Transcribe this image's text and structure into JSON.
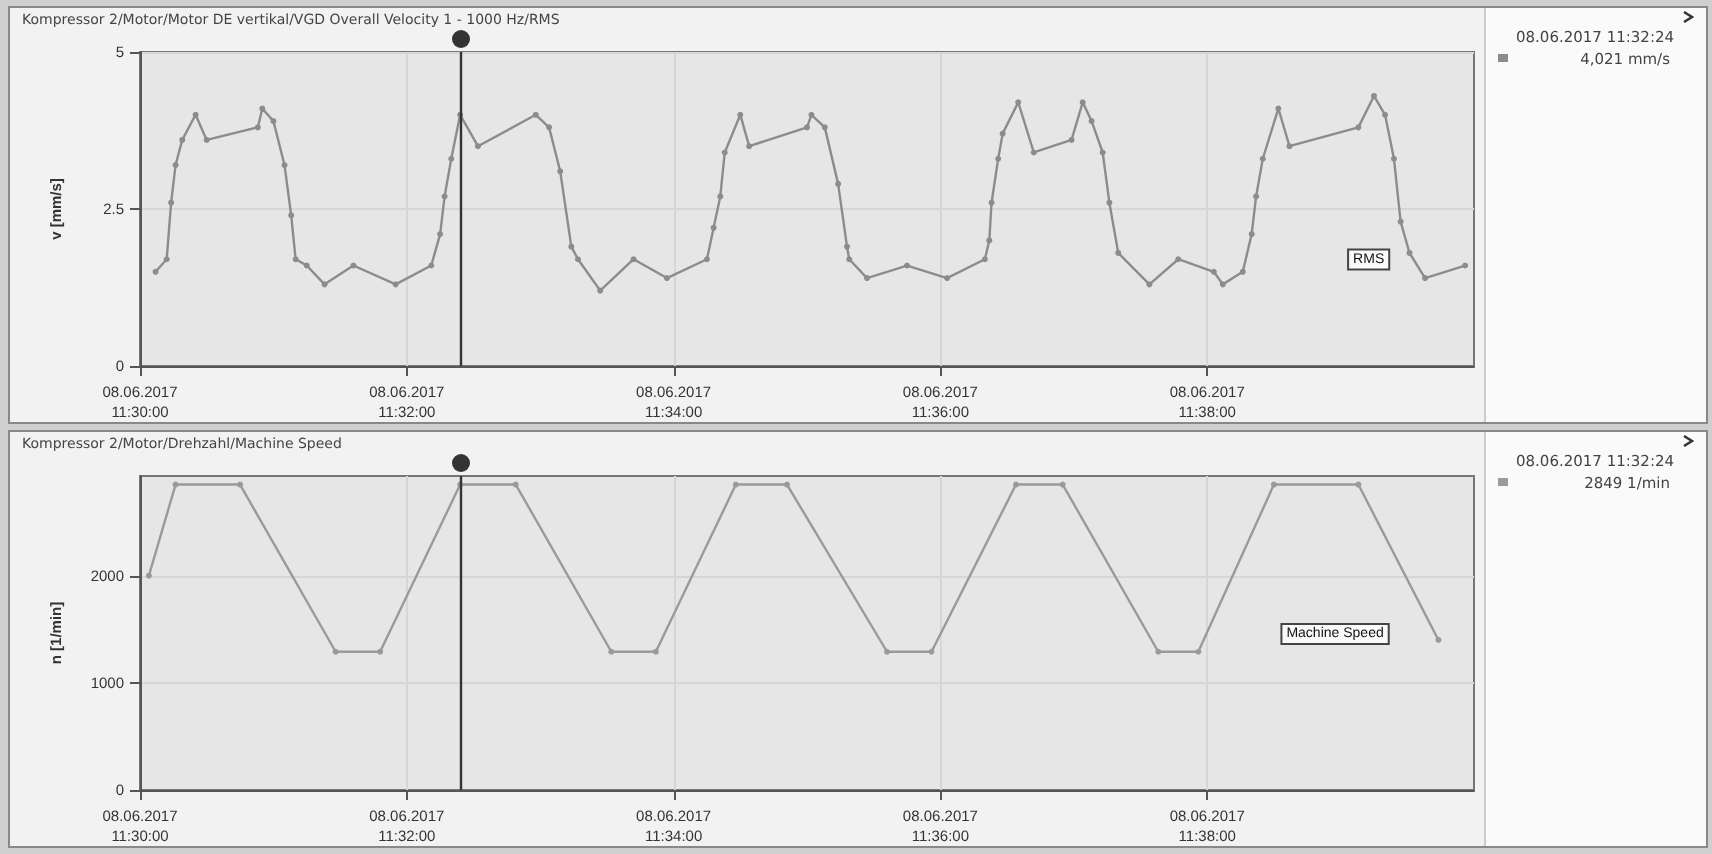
{
  "chart_data": [
    {
      "type": "line",
      "title": "Kompressor 2/Motor/Motor DE vertikal/VGD Overall Velocity 1 - 1000 Hz/RMS",
      "ylabel": "v [mm/s]",
      "xlim": [
        "2017-06-08T11:30:00",
        "2017-06-08T11:40:00"
      ],
      "xticks": [
        {
          "value": "2017-06-08T11:30:00",
          "label": "08.06.2017\n11:30:00"
        },
        {
          "value": "2017-06-08T11:32:00",
          "label": "08.06.2017\n11:32:00"
        },
        {
          "value": "2017-06-08T11:34:00",
          "label": "08.06.2017\n11:34:00"
        },
        {
          "value": "2017-06-08T11:36:00",
          "label": "08.06.2017\n11:36:00"
        },
        {
          "value": "2017-06-08T11:38:00",
          "label": "08.06.2017\n11:38:00"
        }
      ],
      "ylim": [
        0,
        5
      ],
      "yticks": [
        0,
        2.5,
        5
      ],
      "grid": true,
      "marker": "circle",
      "line_style": "solid",
      "ref_lines": [
        {
          "axis": "x",
          "value": "2017-06-08T11:32:24",
          "color": "#333333"
        }
      ],
      "annotations": [
        "08.06.2017 11:32:24",
        "4,021 mm/s"
      ],
      "series": [
        {
          "name": "RMS",
          "color": "#8c8c8c",
          "x": [
            "2017-06-08T11:30:07",
            "2017-06-08T11:30:12",
            "2017-06-08T11:30:14",
            "2017-06-08T11:30:16",
            "2017-06-08T11:30:19",
            "2017-06-08T11:30:25",
            "2017-06-08T11:30:30",
            "2017-06-08T11:30:53",
            "2017-06-08T11:30:55",
            "2017-06-08T11:31:00",
            "2017-06-08T11:31:05",
            "2017-06-08T11:31:08",
            "2017-06-08T11:31:10",
            "2017-06-08T11:31:15",
            "2017-06-08T11:31:23",
            "2017-06-08T11:31:36",
            "2017-06-08T11:31:55",
            "2017-06-08T11:32:11",
            "2017-06-08T11:32:15",
            "2017-06-08T11:32:17",
            "2017-06-08T11:32:20",
            "2017-06-08T11:32:24",
            "2017-06-08T11:32:32",
            "2017-06-08T11:32:58",
            "2017-06-08T11:33:04",
            "2017-06-08T11:33:09",
            "2017-06-08T11:33:14",
            "2017-06-08T11:33:17",
            "2017-06-08T11:33:27",
            "2017-06-08T11:33:42",
            "2017-06-08T11:33:57",
            "2017-06-08T11:34:15",
            "2017-06-08T11:34:18",
            "2017-06-08T11:34:21",
            "2017-06-08T11:34:23",
            "2017-06-08T11:34:30",
            "2017-06-08T11:34:34",
            "2017-06-08T11:35:00",
            "2017-06-08T11:35:02",
            "2017-06-08T11:35:08",
            "2017-06-08T11:35:14",
            "2017-06-08T11:35:18",
            "2017-06-08T11:35:19",
            "2017-06-08T11:35:27",
            "2017-06-08T11:35:45",
            "2017-06-08T11:36:03",
            "2017-06-08T11:36:20",
            "2017-06-08T11:36:22",
            "2017-06-08T11:36:23",
            "2017-06-08T11:36:26",
            "2017-06-08T11:36:28",
            "2017-06-08T11:36:35",
            "2017-06-08T11:36:42",
            "2017-06-08T11:36:59",
            "2017-06-08T11:37:04",
            "2017-06-08T11:37:08",
            "2017-06-08T11:37:13",
            "2017-06-08T11:37:16",
            "2017-06-08T11:37:20",
            "2017-06-08T11:37:34",
            "2017-06-08T11:37:47",
            "2017-06-08T11:38:03",
            "2017-06-08T11:38:07",
            "2017-06-08T11:38:16",
            "2017-06-08T11:38:20",
            "2017-06-08T11:38:22",
            "2017-06-08T11:38:25",
            "2017-06-08T11:38:32",
            "2017-06-08T11:38:37",
            "2017-06-08T11:39:08",
            "2017-06-08T11:39:15",
            "2017-06-08T11:39:20",
            "2017-06-08T11:39:24",
            "2017-06-08T11:39:27",
            "2017-06-08T11:39:31",
            "2017-06-08T11:39:38",
            "2017-06-08T11:39:56"
          ],
          "values": [
            1.5,
            1.7,
            2.6,
            3.2,
            3.6,
            4.0,
            3.6,
            3.8,
            4.1,
            3.9,
            3.2,
            2.4,
            1.7,
            1.6,
            1.3,
            1.6,
            1.3,
            1.6,
            2.1,
            2.7,
            3.3,
            4.0,
            3.5,
            4.0,
            3.8,
            3.1,
            1.9,
            1.7,
            1.2,
            1.7,
            1.4,
            1.7,
            2.2,
            2.7,
            3.4,
            4.0,
            3.5,
            3.8,
            4.0,
            3.8,
            2.9,
            1.9,
            1.7,
            1.4,
            1.6,
            1.4,
            1.7,
            2.0,
            2.6,
            3.3,
            3.7,
            4.2,
            3.4,
            3.6,
            4.2,
            3.9,
            3.4,
            2.6,
            1.8,
            1.3,
            1.7,
            1.5,
            1.3,
            1.5,
            2.1,
            2.7,
            3.3,
            4.1,
            3.5,
            3.8,
            4.3,
            4.0,
            3.3,
            2.3,
            1.8,
            1.4,
            1.6
          ]
        }
      ]
    },
    {
      "type": "line",
      "title": "Kompressor 2/Motor/Drehzahl/Machine Speed",
      "ylabel": "n [1/min]",
      "xlim": [
        "2017-06-08T11:30:00",
        "2017-06-08T11:40:00"
      ],
      "xticks": [
        {
          "value": "2017-06-08T11:30:00",
          "label": "08.06.2017\n11:30:00"
        },
        {
          "value": "2017-06-08T11:32:00",
          "label": "08.06.2017\n11:32:00"
        },
        {
          "value": "2017-06-08T11:34:00",
          "label": "08.06.2017\n11:34:00"
        },
        {
          "value": "2017-06-08T11:36:00",
          "label": "08.06.2017\n11:36:00"
        },
        {
          "value": "2017-06-08T11:38:00",
          "label": "08.06.2017\n11:38:00"
        }
      ],
      "ylim": [
        0,
        2930
      ],
      "yticks": [
        0,
        1000,
        2000
      ],
      "grid": true,
      "marker": "circle",
      "line_style": "solid",
      "ref_lines": [
        {
          "axis": "x",
          "value": "2017-06-08T11:32:24",
          "color": "#333333"
        }
      ],
      "annotations": [
        "08.06.2017 11:32:24",
        "2849 1/min"
      ],
      "series": [
        {
          "name": "Machine Speed",
          "color": "#9a9a9a",
          "x": [
            "2017-06-08T11:30:04",
            "2017-06-08T11:30:16",
            "2017-06-08T11:30:45",
            "2017-06-08T11:31:28",
            "2017-06-08T11:31:48",
            "2017-06-08T11:32:24",
            "2017-06-08T11:32:49",
            "2017-06-08T11:33:32",
            "2017-06-08T11:33:52",
            "2017-06-08T11:34:28",
            "2017-06-08T11:34:51",
            "2017-06-08T11:35:36",
            "2017-06-08T11:35:56",
            "2017-06-08T11:36:34",
            "2017-06-08T11:36:55",
            "2017-06-08T11:37:38",
            "2017-06-08T11:37:56",
            "2017-06-08T11:38:30",
            "2017-06-08T11:39:08",
            "2017-06-08T11:39:44"
          ],
          "values": [
            2000,
            2850,
            2850,
            1290,
            1290,
            2850,
            2850,
            1290,
            1290,
            2850,
            2850,
            1290,
            1290,
            2850,
            2850,
            1290,
            1290,
            2850,
            2850,
            1400
          ]
        }
      ]
    }
  ]
}
